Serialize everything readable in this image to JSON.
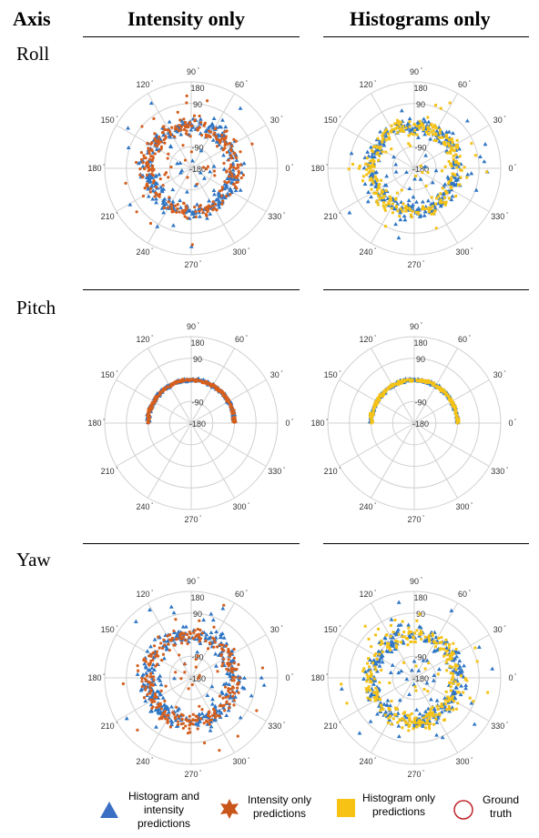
{
  "headers": {
    "axis": "Axis",
    "col1": "Intensity only",
    "col2": "Histograms only"
  },
  "rows": [
    "Roll",
    "Pitch",
    "Yaw"
  ],
  "polar_axis": {
    "angle_labels": [
      "0",
      "30",
      "60",
      "90",
      "120",
      "150",
      "180",
      "210",
      "240",
      "270",
      "300",
      "330"
    ],
    "radial_labels": [
      "180",
      "90",
      "-90",
      "-180"
    ]
  },
  "legend": {
    "hist_intensity": "Histogram and intensity predictions",
    "intensity_only": "Intensity only predictions",
    "hist_only": "Histogram only predictions",
    "ground_truth": "Ground truth"
  },
  "colors": {
    "hist_intensity": "#2e75c4",
    "intensity_only": "#d45f1e",
    "hist_only": "#f5c218",
    "ground_truth": "#c0232b",
    "grid": "#d0d0d0"
  },
  "chart_data": [
    {
      "type": "scatter",
      "projection": "polar",
      "row": "Roll",
      "column": "Intensity only",
      "shape": "ring",
      "ring_radius": 0,
      "spread": 25,
      "outliers": "many",
      "series": [
        {
          "name": "Histogram and intensity predictions",
          "key": "hist_intensity"
        },
        {
          "name": "Intensity only predictions",
          "key": "intensity_only"
        }
      ]
    },
    {
      "type": "scatter",
      "projection": "polar",
      "row": "Roll",
      "column": "Histograms only",
      "shape": "ring",
      "ring_radius": 0,
      "spread": 25,
      "outliers": "many",
      "series": [
        {
          "name": "Histogram and intensity predictions",
          "key": "hist_intensity"
        },
        {
          "name": "Histogram only predictions",
          "key": "hist_only"
        }
      ]
    },
    {
      "type": "scatter",
      "projection": "polar",
      "row": "Pitch",
      "column": "Intensity only",
      "shape": "upper-arc",
      "ring_radius": 0,
      "spread": 4,
      "outliers": "few",
      "series": [
        {
          "name": "Histogram and intensity predictions",
          "key": "hist_intensity"
        },
        {
          "name": "Intensity only predictions",
          "key": "intensity_only"
        }
      ]
    },
    {
      "type": "scatter",
      "projection": "polar",
      "row": "Pitch",
      "column": "Histograms only",
      "shape": "upper-arc",
      "ring_radius": 0,
      "spread": 4,
      "outliers": "few",
      "series": [
        {
          "name": "Histogram and intensity predictions",
          "key": "hist_intensity"
        },
        {
          "name": "Histogram only predictions",
          "key": "hist_only"
        }
      ]
    },
    {
      "type": "scatter",
      "projection": "polar",
      "row": "Yaw",
      "column": "Intensity only",
      "shape": "ring",
      "ring_radius": 0,
      "spread": 25,
      "outliers": "many",
      "series": [
        {
          "name": "Histogram and intensity predictions",
          "key": "hist_intensity"
        },
        {
          "name": "Intensity only predictions",
          "key": "intensity_only"
        }
      ]
    },
    {
      "type": "scatter",
      "projection": "polar",
      "row": "Yaw",
      "column": "Histograms only",
      "shape": "ring",
      "ring_radius": 0,
      "spread": 25,
      "outliers": "many",
      "series": [
        {
          "name": "Histogram and intensity predictions",
          "key": "hist_intensity"
        },
        {
          "name": "Histogram only predictions",
          "key": "hist_only"
        }
      ]
    }
  ]
}
